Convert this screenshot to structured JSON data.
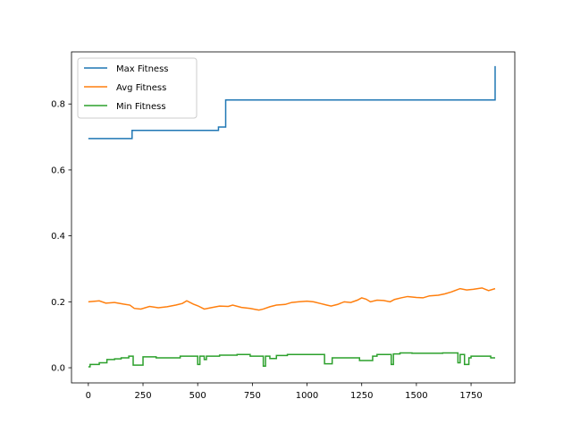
{
  "chart_data": {
    "type": "line",
    "title": "",
    "xlabel": "",
    "ylabel": "",
    "xlim": [
      -77,
      1950
    ],
    "ylim": [
      -0.046,
      0.958
    ],
    "xticks": [
      0,
      250,
      500,
      750,
      1000,
      1250,
      1500,
      1750
    ],
    "xtick_labels": [
      "0",
      "250",
      "500",
      "750",
      "1000",
      "1250",
      "1500",
      "1750"
    ],
    "yticks": [
      0.0,
      0.2,
      0.4,
      0.6,
      0.8
    ],
    "ytick_labels": [
      "0.0",
      "0.2",
      "0.4",
      "0.6",
      "0.8"
    ],
    "grid": false,
    "legend_position": "upper-left",
    "series": [
      {
        "name": "Max Fitness",
        "color": "#1f77b4",
        "x": [
          0,
          200,
          200,
          595,
          595,
          628,
          628,
          1860,
          1860
        ],
        "y": [
          0.695,
          0.695,
          0.72,
          0.72,
          0.73,
          0.73,
          0.812,
          0.812,
          0.915
        ]
      },
      {
        "name": "Avg Fitness",
        "color": "#ff7f0e",
        "x": [
          0,
          50,
          80,
          120,
          160,
          190,
          210,
          240,
          280,
          320,
          360,
          400,
          430,
          450,
          480,
          500,
          530,
          560,
          600,
          640,
          660,
          700,
          740,
          780,
          800,
          830,
          860,
          900,
          930,
          960,
          1000,
          1030,
          1060,
          1090,
          1110,
          1140,
          1170,
          1200,
          1230,
          1250,
          1270,
          1290,
          1320,
          1350,
          1380,
          1400,
          1430,
          1460,
          1500,
          1530,
          1560,
          1600,
          1630,
          1660,
          1700,
          1730,
          1760,
          1800,
          1830,
          1860
        ],
        "y": [
          0.2,
          0.203,
          0.196,
          0.198,
          0.193,
          0.19,
          0.18,
          0.178,
          0.186,
          0.182,
          0.185,
          0.19,
          0.195,
          0.203,
          0.193,
          0.188,
          0.178,
          0.182,
          0.187,
          0.186,
          0.19,
          0.183,
          0.18,
          0.175,
          0.178,
          0.185,
          0.19,
          0.192,
          0.198,
          0.2,
          0.202,
          0.2,
          0.195,
          0.19,
          0.187,
          0.192,
          0.2,
          0.198,
          0.205,
          0.212,
          0.208,
          0.2,
          0.205,
          0.204,
          0.2,
          0.207,
          0.212,
          0.216,
          0.213,
          0.212,
          0.218,
          0.22,
          0.224,
          0.23,
          0.24,
          0.236,
          0.238,
          0.242,
          0.234,
          0.24
        ]
      },
      {
        "name": "Min Fitness",
        "color": "#2ca02c",
        "x": [
          0,
          8,
          8,
          50,
          50,
          85,
          85,
          120,
          120,
          150,
          150,
          185,
          185,
          205,
          205,
          250,
          250,
          310,
          310,
          420,
          420,
          500,
          500,
          510,
          510,
          530,
          530,
          540,
          540,
          600,
          600,
          680,
          680,
          740,
          740,
          800,
          800,
          810,
          810,
          830,
          830,
          860,
          860,
          910,
          910,
          1080,
          1080,
          1115,
          1115,
          1240,
          1240,
          1300,
          1300,
          1320,
          1320,
          1385,
          1385,
          1395,
          1395,
          1425,
          1425,
          1480,
          1480,
          1620,
          1620,
          1690,
          1690,
          1700,
          1700,
          1720,
          1720,
          1740,
          1740,
          1750,
          1750,
          1840,
          1840,
          1860
        ],
        "y": [
          0.003,
          0.003,
          0.01,
          0.01,
          0.015,
          0.015,
          0.025,
          0.025,
          0.027,
          0.027,
          0.03,
          0.03,
          0.035,
          0.035,
          0.008,
          0.008,
          0.033,
          0.033,
          0.03,
          0.03,
          0.035,
          0.035,
          0.01,
          0.01,
          0.035,
          0.035,
          0.025,
          0.025,
          0.035,
          0.035,
          0.038,
          0.038,
          0.04,
          0.04,
          0.035,
          0.035,
          0.005,
          0.005,
          0.035,
          0.035,
          0.028,
          0.028,
          0.037,
          0.037,
          0.04,
          0.04,
          0.012,
          0.012,
          0.03,
          0.03,
          0.022,
          0.022,
          0.035,
          0.035,
          0.04,
          0.04,
          0.01,
          0.01,
          0.042,
          0.042,
          0.045,
          0.045,
          0.044,
          0.044,
          0.045,
          0.045,
          0.015,
          0.015,
          0.04,
          0.04,
          0.01,
          0.01,
          0.03,
          0.03,
          0.035,
          0.035,
          0.03,
          0.03
        ]
      }
    ]
  }
}
